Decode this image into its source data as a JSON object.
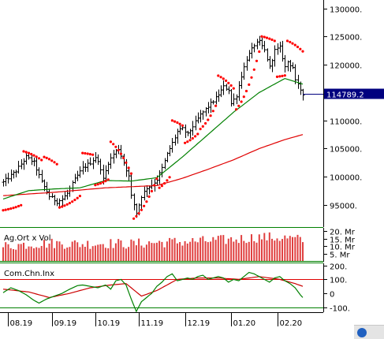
{
  "chart_data": [
    {
      "panel": "price",
      "type": "candlestick",
      "y_ticks": [
        "130000.",
        "125000.",
        "120000.",
        "115000.",
        "110000.",
        "105000.",
        "100000.",
        "95000."
      ],
      "y_tick_values": [
        130000,
        125000,
        120000,
        115000,
        110000,
        105000,
        100000,
        95000
      ],
      "ylim": [
        91000,
        131500
      ],
      "last_price": 114789.2,
      "last_price_label": "114789.2",
      "price_keypoints": [
        [
          0,
          99000
        ],
        [
          5,
          101000
        ],
        [
          9,
          103500
        ],
        [
          12,
          102500
        ],
        [
          15,
          99000
        ],
        [
          18,
          96500
        ],
        [
          21,
          95500
        ],
        [
          23,
          96000
        ],
        [
          25,
          97000
        ],
        [
          28,
          99500
        ],
        [
          31,
          101500
        ],
        [
          34,
          102500
        ],
        [
          36,
          103500
        ],
        [
          38,
          101500
        ],
        [
          39,
          99500
        ],
        [
          41,
          102500
        ],
        [
          43,
          104000
        ],
        [
          45,
          105000
        ],
        [
          47,
          102500
        ],
        [
          49,
          100000
        ],
        [
          50,
          96500
        ],
        [
          52,
          93500
        ],
        [
          54,
          96500
        ],
        [
          56,
          98000
        ],
        [
          58,
          98500
        ],
        [
          60,
          99500
        ],
        [
          62,
          101500
        ],
        [
          64,
          104000
        ],
        [
          66,
          106000
        ],
        [
          68,
          108000
        ],
        [
          70,
          108500
        ],
        [
          72,
          107500
        ],
        [
          74,
          109000
        ],
        [
          77,
          111000
        ],
        [
          80,
          112500
        ],
        [
          83,
          114000
        ],
        [
          86,
          116000
        ],
        [
          88,
          115500
        ],
        [
          89,
          113000
        ],
        [
          91,
          114500
        ],
        [
          93,
          118000
        ],
        [
          95,
          121000
        ],
        [
          98,
          123500
        ],
        [
          100,
          124000
        ],
        [
          102,
          122500
        ],
        [
          104,
          119500
        ],
        [
          106,
          122500
        ],
        [
          108,
          123000
        ],
        [
          110,
          119500
        ],
        [
          111,
          120500
        ],
        [
          113,
          119500
        ],
        [
          114,
          117000
        ],
        [
          116,
          115500
        ],
        [
          117,
          114789.2
        ]
      ],
      "sma_fast_keypoints": [
        [
          0,
          96000
        ],
        [
          10,
          97500
        ],
        [
          20,
          97800
        ],
        [
          30,
          98000
        ],
        [
          40,
          99300
        ],
        [
          50,
          99200
        ],
        [
          60,
          99800
        ],
        [
          70,
          103500
        ],
        [
          80,
          107500
        ],
        [
          90,
          111500
        ],
        [
          100,
          115000
        ],
        [
          110,
          117500
        ],
        [
          117,
          116500
        ]
      ],
      "sma_slow_keypoints": [
        [
          0,
          96600
        ],
        [
          20,
          97200
        ],
        [
          40,
          98000
        ],
        [
          60,
          98400
        ],
        [
          70,
          99700
        ],
        [
          80,
          101300
        ],
        [
          90,
          103000
        ],
        [
          100,
          105000
        ],
        [
          110,
          106600
        ],
        [
          117,
          107500
        ]
      ],
      "psar_segments": [
        {
          "from": 0,
          "to": 7,
          "side": "below",
          "start": 94000,
          "accel": 70
        },
        {
          "from": 8,
          "to": 15,
          "side": "above",
          "start": 104500,
          "accel": -120
        },
        {
          "from": 16,
          "to": 21,
          "side": "above",
          "start": 103500,
          "accel": -160
        },
        {
          "from": 22,
          "to": 30,
          "side": "below",
          "start": 94500,
          "accel": 130
        },
        {
          "from": 31,
          "to": 35,
          "side": "above",
          "start": 104200,
          "accel": -50
        },
        {
          "from": 36,
          "to": 41,
          "side": "below",
          "start": 98500,
          "accel": 120
        },
        {
          "from": 42,
          "to": 50,
          "side": "above",
          "start": 106200,
          "accel": -360
        },
        {
          "from": 51,
          "to": 60,
          "side": "below",
          "start": 92500,
          "accel": 380
        },
        {
          "from": 61,
          "to": 65,
          "side": "below",
          "start": 98000,
          "accel": 320
        },
        {
          "from": 66,
          "to": 70,
          "side": "above",
          "start": 110000,
          "accel": -150
        },
        {
          "from": 71,
          "to": 76,
          "side": "below",
          "start": 106000,
          "accel": 200
        },
        {
          "from": 77,
          "to": 83,
          "side": "below",
          "start": 108500,
          "accel": 400
        },
        {
          "from": 84,
          "to": 90,
          "side": "above",
          "start": 118000,
          "accel": -220
        },
        {
          "from": 91,
          "to": 100,
          "side": "below",
          "start": 112000,
          "accel": 550
        },
        {
          "from": 101,
          "to": 106,
          "side": "above",
          "start": 125000,
          "accel": -100
        },
        {
          "from": 107,
          "to": 110,
          "side": "below",
          "start": 117800,
          "accel": 60
        },
        {
          "from": 111,
          "to": 117,
          "side": "above",
          "start": 124200,
          "accel": -180
        }
      ],
      "colors": {
        "bars": "#000000",
        "sma_fast": "#008000",
        "sma_slow": "#e00000",
        "psar": "#ff0000",
        "last_price_line": "#00007f",
        "last_price_box": "#00007f"
      }
    },
    {
      "panel": "volume",
      "type": "bar",
      "title": "Ag.Ort x Vol",
      "y_ticks": [
        "20. Mr",
        "15. Mr",
        "10. Mr",
        "5. Mr"
      ],
      "y_tick_values": [
        20,
        15,
        10,
        5
      ],
      "ylim": [
        0,
        22
      ],
      "unit": "Mr",
      "volume_keypoints": [
        [
          0,
          10
        ],
        [
          10,
          11.5
        ],
        [
          20,
          12
        ],
        [
          30,
          11.5
        ],
        [
          40,
          12
        ],
        [
          50,
          11.5
        ],
        [
          60,
          12.5
        ],
        [
          70,
          13
        ],
        [
          80,
          13.5
        ],
        [
          90,
          14.5
        ],
        [
          100,
          16
        ],
        [
          110,
          15.5
        ],
        [
          117,
          14
        ]
      ],
      "volume_jitter": 3.5,
      "colors": {
        "bars": "#e04040",
        "baseline": "#008000"
      }
    },
    {
      "panel": "cci",
      "type": "line",
      "title": "Com.Chn.Inx",
      "y_ticks": [
        "200.",
        "100.",
        "0",
        "-100."
      ],
      "y_tick_values": [
        200,
        100,
        0,
        -100
      ],
      "ylim": [
        -135,
        215
      ],
      "reference_lines": [
        100,
        -100
      ],
      "cci_keypoints": [
        [
          0,
          5
        ],
        [
          3,
          40
        ],
        [
          6,
          20
        ],
        [
          9,
          -10
        ],
        [
          12,
          -50
        ],
        [
          14,
          -70
        ],
        [
          17,
          -40
        ],
        [
          20,
          -20
        ],
        [
          23,
          0
        ],
        [
          26,
          30
        ],
        [
          29,
          55
        ],
        [
          31,
          60
        ],
        [
          34,
          50
        ],
        [
          37,
          40
        ],
        [
          40,
          60
        ],
        [
          42,
          30
        ],
        [
          44,
          90
        ],
        [
          46,
          100
        ],
        [
          48,
          60
        ],
        [
          50,
          -40
        ],
        [
          52,
          -130
        ],
        [
          54,
          -60
        ],
        [
          56,
          -30
        ],
        [
          58,
          0
        ],
        [
          60,
          50
        ],
        [
          62,
          80
        ],
        [
          64,
          120
        ],
        [
          66,
          140
        ],
        [
          68,
          90
        ],
        [
          70,
          100
        ],
        [
          72,
          110
        ],
        [
          74,
          100
        ],
        [
          76,
          120
        ],
        [
          78,
          130
        ],
        [
          80,
          100
        ],
        [
          82,
          110
        ],
        [
          84,
          120
        ],
        [
          86,
          110
        ],
        [
          88,
          80
        ],
        [
          90,
          100
        ],
        [
          92,
          90
        ],
        [
          94,
          120
        ],
        [
          96,
          150
        ],
        [
          98,
          140
        ],
        [
          100,
          120
        ],
        [
          102,
          100
        ],
        [
          104,
          80
        ],
        [
          106,
          110
        ],
        [
          108,
          120
        ],
        [
          110,
          90
        ],
        [
          112,
          70
        ],
        [
          114,
          40
        ],
        [
          116,
          -10
        ],
        [
          117,
          -30
        ]
      ],
      "signal_keypoints": [
        [
          0,
          30
        ],
        [
          10,
          10
        ],
        [
          18,
          -30
        ],
        [
          26,
          0
        ],
        [
          34,
          40
        ],
        [
          42,
          60
        ],
        [
          48,
          70
        ],
        [
          54,
          -20
        ],
        [
          60,
          20
        ],
        [
          68,
          100
        ],
        [
          76,
          110
        ],
        [
          84,
          110
        ],
        [
          92,
          100
        ],
        [
          100,
          120
        ],
        [
          108,
          100
        ],
        [
          114,
          70
        ],
        [
          117,
          50
        ]
      ],
      "colors": {
        "cci": "#008000",
        "signal": "#cc0000",
        "reference": "#e00000",
        "zero": "#008000"
      }
    }
  ],
  "x_axis": {
    "labels": [
      "08.19",
      "09.19",
      "10.19",
      "11.19",
      "12.19",
      "01.20",
      "02.20"
    ],
    "label_positions_bar_index": [
      2,
      19,
      36,
      53,
      71,
      89,
      107
    ],
    "bar_count": 118
  }
}
